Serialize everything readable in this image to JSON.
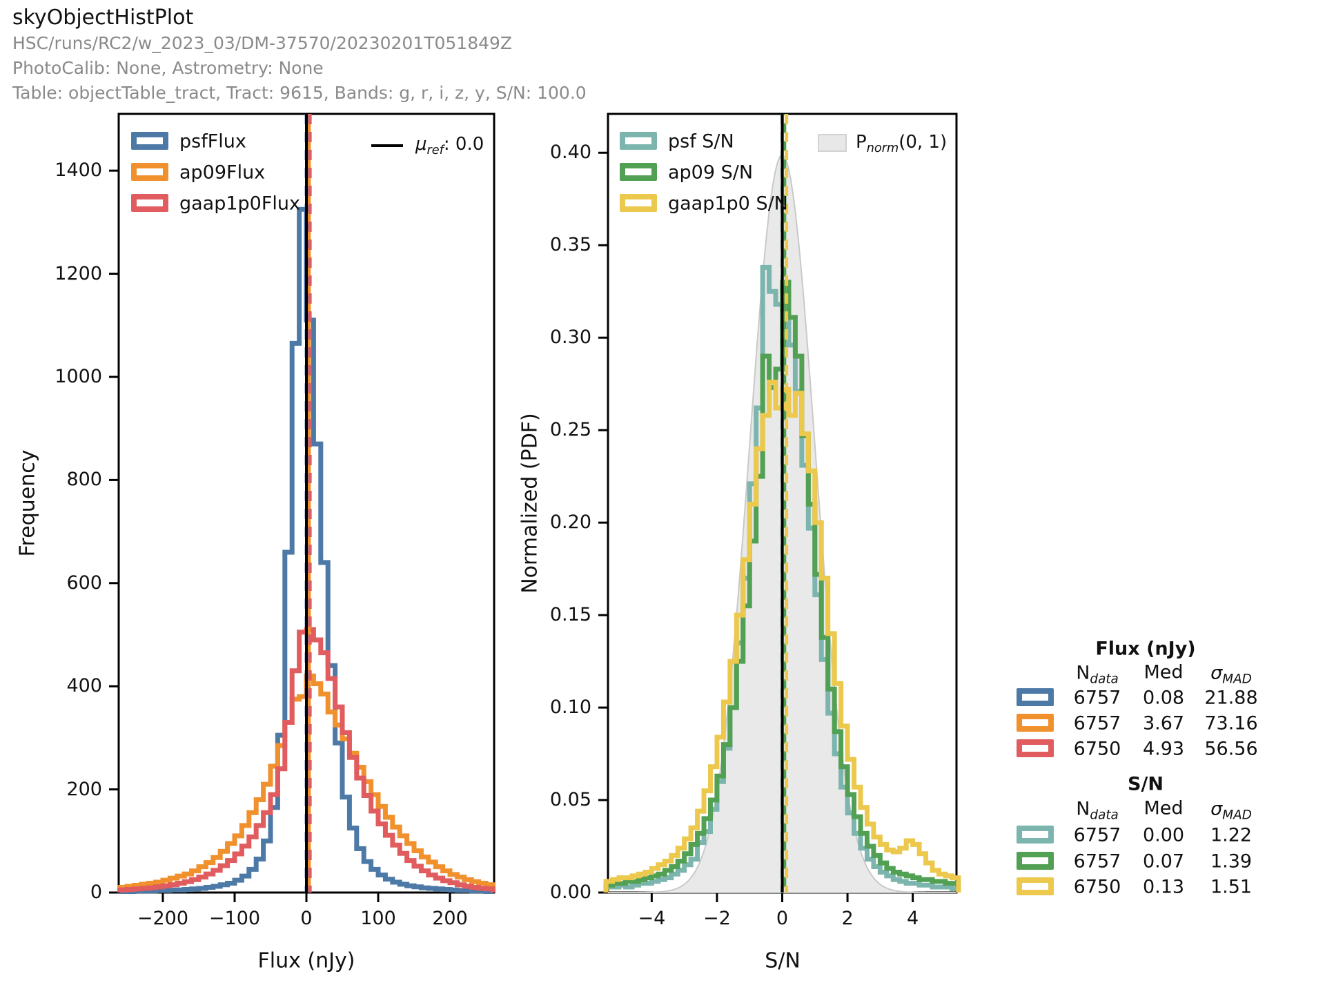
{
  "header": {
    "title": "skyObjectHistPlot",
    "run": "HSC/runs/RC2/w_2023_03/DM-37570/20230201T051849Z",
    "calib": "PhotoCalib: None, Astrometry: None",
    "table": "Table: objectTable_tract, Tract: 9615, Bands: g, r, i, z, y, S/N: 100.0"
  },
  "chart_data": [
    {
      "type": "histogram-step",
      "xlabel": "Flux (nJy)",
      "ylabel": "Frequency",
      "xlim": [
        -261.5,
        261.5
      ],
      "ylim": [
        0,
        1510
      ],
      "xtick_vals": [
        -200,
        -100,
        0,
        100,
        200
      ],
      "xtick_labels": [
        "−200",
        "−100",
        "0",
        "100",
        "200"
      ],
      "ytick_vals": [
        0,
        200,
        400,
        600,
        800,
        1000,
        1200,
        1400
      ],
      "ytick_labels": [
        "0",
        "200",
        "400",
        "600",
        "800",
        "1000",
        "1200",
        "1400"
      ],
      "bin_start": -260,
      "bin_width": 10,
      "series": [
        {
          "name": "psfFlux",
          "color": "#4d79a7",
          "values": [
            2,
            2,
            3,
            3,
            3,
            4,
            4,
            5,
            5,
            6,
            7,
            8,
            10,
            12,
            15,
            18,
            24,
            32,
            45,
            65,
            100,
            165,
            305,
            660,
            1065,
            1325,
            1110,
            870,
            640,
            440,
            290,
            185,
            125,
            85,
            60,
            45,
            34,
            26,
            20,
            16,
            13,
            11,
            9,
            8,
            7,
            6,
            5,
            4,
            4,
            3,
            3,
            2
          ]
        },
        {
          "name": "ap09Flux",
          "color": "#f0912d",
          "values": [
            10,
            12,
            14,
            16,
            18,
            20,
            24,
            28,
            32,
            36,
            42,
            50,
            58,
            68,
            80,
            95,
            110,
            130,
            155,
            180,
            210,
            245,
            285,
            330,
            375,
            380,
            420,
            405,
            385,
            350,
            325,
            298,
            270,
            243,
            215,
            190,
            167,
            146,
            127,
            110,
            95,
            81,
            69,
            59,
            50,
            42,
            35,
            30,
            25,
            21,
            18,
            15
          ]
        },
        {
          "name": "gaap1p0Flux",
          "color": "#e05c5e",
          "values": [
            5,
            6,
            7,
            8,
            9,
            11,
            13,
            15,
            18,
            21,
            25,
            30,
            36,
            43,
            52,
            62,
            75,
            90,
            108,
            130,
            155,
            190,
            240,
            330,
            430,
            505,
            510,
            490,
            465,
            415,
            360,
            310,
            262,
            222,
            188,
            158,
            133,
            111,
            92,
            76,
            62,
            51,
            42,
            34,
            28,
            23,
            19,
            15,
            12,
            10,
            8,
            7
          ]
        }
      ],
      "ref_line": {
        "x": 0.0,
        "color": "#000000",
        "legend": {
          "symbol": "μ",
          "sub": "ref",
          "rest": ": 0.0"
        }
      },
      "median_lines": [
        {
          "x": 0.08,
          "color": "#4d79a7"
        },
        {
          "x": 3.67,
          "color": "#f0912d"
        },
        {
          "x": 4.93,
          "color": "#e05c5e"
        }
      ]
    },
    {
      "type": "histogram-step",
      "xlabel": "S/N",
      "ylabel": "Normalized (PDF)",
      "xlim": [
        -5.34,
        5.34
      ],
      "ylim": [
        0,
        0.421
      ],
      "xtick_vals": [
        -4,
        -2,
        0,
        2,
        4
      ],
      "xtick_labels": [
        "−4",
        "−2",
        "0",
        "2",
        "4"
      ],
      "ytick_vals": [
        0,
        0.05,
        0.1,
        0.15,
        0.2,
        0.25,
        0.3,
        0.35,
        0.4
      ],
      "ytick_labels": [
        "0.00",
        "0.05",
        "0.10",
        "0.15",
        "0.20",
        "0.25",
        "0.30",
        "0.35",
        "0.40"
      ],
      "bin_start": -5.4,
      "bin_width": 0.2,
      "series": [
        {
          "name": "psf S/N",
          "color": "#7cb5ae",
          "values": [
            0.003,
            0.003,
            0.004,
            0.003,
            0.004,
            0.005,
            0.005,
            0.006,
            0.007,
            0.008,
            0.01,
            0.012,
            0.015,
            0.018,
            0.027,
            0.033,
            0.045,
            0.06,
            0.078,
            0.1,
            0.135,
            0.17,
            0.221,
            0.262,
            0.338,
            0.325,
            0.318,
            0.33,
            0.296,
            0.271,
            0.231,
            0.197,
            0.161,
            0.126,
            0.097,
            0.075,
            0.057,
            0.043,
            0.032,
            0.024,
            0.018,
            0.014,
            0.011,
            0.009,
            0.007,
            0.006,
            0.005,
            0.005,
            0.004,
            0.004,
            0.003,
            0.003,
            0.003,
            0.002
          ]
        },
        {
          "name": "ap09 S/N",
          "color": "#52a053",
          "values": [
            0.004,
            0.005,
            0.005,
            0.006,
            0.006,
            0.007,
            0.008,
            0.009,
            0.01,
            0.012,
            0.014,
            0.017,
            0.021,
            0.026,
            0.032,
            0.04,
            0.05,
            0.063,
            0.08,
            0.1,
            0.125,
            0.155,
            0.19,
            0.225,
            0.29,
            0.273,
            0.283,
            0.33,
            0.311,
            0.29,
            0.247,
            0.21,
            0.172,
            0.138,
            0.11,
            0.087,
            0.068,
            0.053,
            0.041,
            0.032,
            0.025,
            0.02,
            0.016,
            0.013,
            0.011,
            0.01,
            0.009,
            0.008,
            0.007,
            0.007,
            0.006,
            0.006,
            0.005,
            0.005
          ]
        },
        {
          "name": "gaap1p0 S/N",
          "color": "#ecc84c",
          "values": [
            0.006,
            0.007,
            0.008,
            0.008,
            0.009,
            0.01,
            0.011,
            0.013,
            0.015,
            0.017,
            0.02,
            0.024,
            0.029,
            0.035,
            0.044,
            0.055,
            0.068,
            0.084,
            0.103,
            0.125,
            0.15,
            0.18,
            0.21,
            0.24,
            0.258,
            0.276,
            0.262,
            0.272,
            0.258,
            0.27,
            0.248,
            0.228,
            0.2,
            0.17,
            0.14,
            0.113,
            0.09,
            0.072,
            0.057,
            0.046,
            0.037,
            0.03,
            0.026,
            0.023,
            0.022,
            0.024,
            0.028,
            0.026,
            0.021,
            0.016,
            0.012,
            0.01,
            0.009,
            0.008
          ]
        }
      ],
      "ref_line": {
        "x": 0.0,
        "color": "#000000"
      },
      "median_lines": [
        {
          "x": 0.0,
          "color": "#7cb5ae"
        },
        {
          "x": 0.07,
          "color": "#52a053"
        },
        {
          "x": 0.13,
          "color": "#ecc84c"
        }
      ],
      "norm_overlay": {
        "mean": 0,
        "sigma": 1,
        "peak": 0.3989,
        "fill": "#e9e9e9",
        "edge": "#c9c9c9",
        "legend": {
          "base": "P",
          "sub": "norm",
          "rest": "(0, 1)"
        }
      }
    }
  ],
  "stats_panel": {
    "flux_title": "Flux (nJy)",
    "sn_title": "S/N",
    "columns": {
      "n_base": "N",
      "n_sub": "data",
      "med": "Med",
      "sigma_base": "σ",
      "sigma_sub": "MAD"
    },
    "flux_rows": [
      {
        "color": "#4d79a7",
        "n": "6757",
        "med": "0.08",
        "sigma": "21.88"
      },
      {
        "color": "#f0912d",
        "n": "6757",
        "med": "3.67",
        "sigma": "73.16"
      },
      {
        "color": "#e05c5e",
        "n": "6750",
        "med": "4.93",
        "sigma": "56.56"
      }
    ],
    "sn_rows": [
      {
        "color": "#7cb5ae",
        "n": "6757",
        "med": "0.00",
        "sigma": "1.22"
      },
      {
        "color": "#52a053",
        "n": "6757",
        "med": "0.07",
        "sigma": "1.39"
      },
      {
        "color": "#ecc84c",
        "n": "6750",
        "med": "0.13",
        "sigma": "1.51"
      }
    ]
  }
}
